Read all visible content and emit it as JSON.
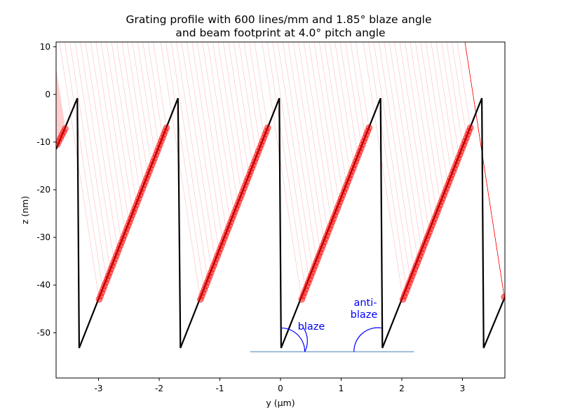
{
  "chart_data": {
    "type": "line",
    "title": "Grating profile with 600 lines/mm and 1.85° blaze angle\nand beam footprint at 4.0° pitch angle",
    "xlabel": "y (µm)",
    "ylabel": "z (nm)",
    "xlim": [
      -3.7,
      3.7
    ],
    "ylim": [
      -59.5,
      11
    ],
    "xticks": [
      -3,
      -2,
      -1,
      0,
      1,
      2,
      3
    ],
    "yticks": [
      10,
      0,
      -10,
      -20,
      -30,
      -40,
      -50
    ],
    "xtick_labels": [
      "-3",
      "-2",
      "-1",
      "0",
      "1",
      "2",
      "3"
    ],
    "ytick_labels": [
      "10",
      "0",
      "-10",
      "-20",
      "-30",
      "-40",
      "-50"
    ],
    "grid": false,
    "profile": {
      "name": "grating profile",
      "color": "#000000",
      "points": [
        [
          -3.7,
          -11.5
        ],
        [
          -3.35,
          -0.8
        ],
        [
          -3.32,
          -53.2
        ],
        [
          -1.69,
          -0.8
        ],
        [
          -1.65,
          -53.2
        ],
        [
          -0.02,
          -0.8
        ],
        [
          0.01,
          -53.2
        ],
        [
          1.65,
          -0.8
        ],
        [
          1.68,
          -53.2
        ],
        [
          3.32,
          -0.8
        ],
        [
          3.35,
          -53.2
        ],
        [
          3.7,
          -42.5
        ]
      ]
    },
    "footprint": {
      "name": "beam footprint",
      "color": "#ff0000",
      "segments": [
        {
          "from": [
            -3.68,
            -10.5
          ],
          "to": [
            -3.55,
            -7.2
          ]
        },
        {
          "from": [
            -2.99,
            -43.0
          ],
          "to": [
            -1.88,
            -7.0
          ]
        },
        {
          "from": [
            -1.32,
            -43.0
          ],
          "to": [
            -0.21,
            -7.0
          ]
        },
        {
          "from": [
            0.35,
            -43.0
          ],
          "to": [
            1.46,
            -7.0
          ]
        },
        {
          "from": [
            2.02,
            -43.0
          ],
          "to": [
            3.13,
            -7.0
          ]
        },
        {
          "from": [
            3.69,
            -42.5
          ],
          "to": [
            3.69,
            -42.5
          ]
        }
      ]
    },
    "rays": {
      "color": "#ff0000",
      "pitch_angle_deg": 4.0
    },
    "baseline": {
      "color": "#7fa7d4",
      "from": [
        -0.5,
        -54.0
      ],
      "to": [
        2.2,
        -54.0
      ]
    },
    "annotations": [
      {
        "text": "blaze",
        "color": "#0000ff"
      },
      {
        "text": "anti-",
        "color": "#0000ff"
      },
      {
        "text": "blaze",
        "color": "#0000ff"
      }
    ],
    "angle_arcs": {
      "color": "#0000ff",
      "blaze_center": [
        0.4,
        -54.0
      ],
      "anti_blaze_center": [
        1.27,
        -54.0
      ]
    }
  }
}
